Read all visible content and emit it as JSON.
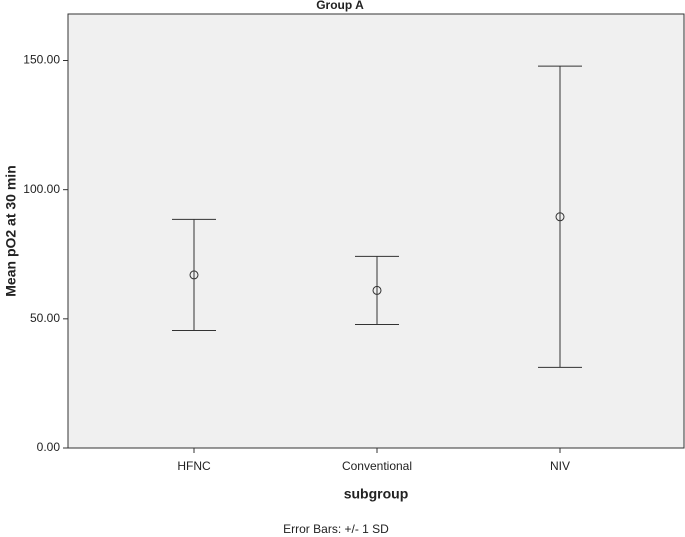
{
  "chart_data": {
    "type": "errorbar",
    "title": "Group A",
    "x_label": "subgroup",
    "y_label": "Mean pO2 at 30 min",
    "categories": [
      "HFNC",
      "Conventional",
      "NIV"
    ],
    "values": [
      67,
      61,
      89.5
    ],
    "errors": [
      21.5,
      13.2,
      58.3
    ],
    "color": "#333333",
    "plot_background": "#f0f0f0",
    "ylim": [
      0,
      168
    ],
    "yticks": [
      {
        "value": 0,
        "label": "0.00"
      },
      {
        "value": 50,
        "label": "50.00"
      },
      {
        "value": 100,
        "label": "100.00"
      },
      {
        "value": 150,
        "label": "150.00"
      }
    ],
    "footnote": "Error Bars: +/- 1 SD"
  }
}
